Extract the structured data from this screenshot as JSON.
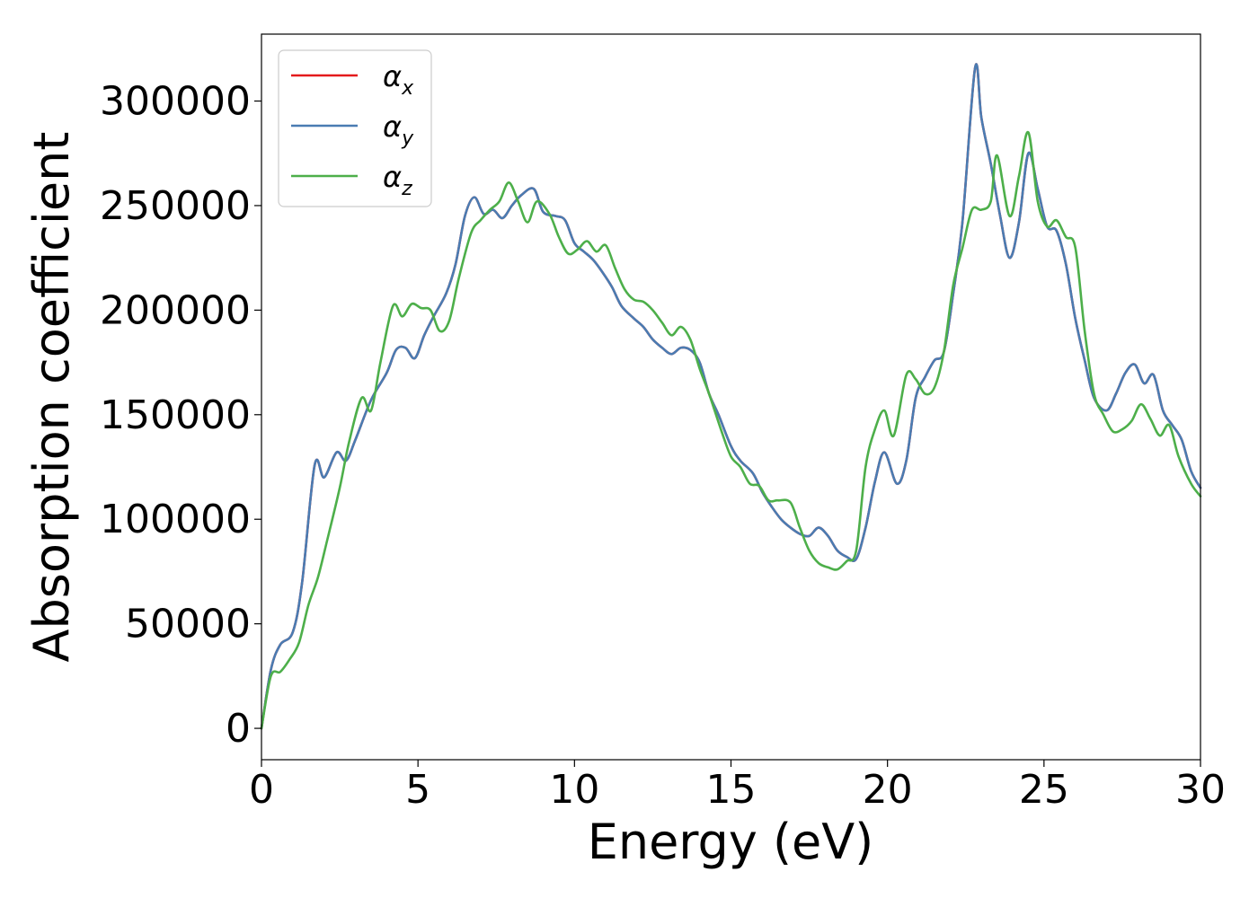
{
  "chart_data": {
    "type": "line",
    "title": "",
    "xlabel": "Energy (eV)",
    "ylabel": "Absorption coefficient",
    "xlim": [
      0,
      30
    ],
    "ylim": [
      -15000,
      332000
    ],
    "xticks": [
      0,
      5,
      10,
      15,
      20,
      25,
      30
    ],
    "yticks": [
      0,
      50000,
      100000,
      150000,
      200000,
      250000,
      300000
    ],
    "grid": false,
    "legend": "top-left",
    "series": [
      {
        "name": "α",
        "subscript": "x",
        "color": "#e41a1c",
        "x": [
          0,
          0.3,
          0.6,
          1.0,
          1.3,
          1.7,
          2.0,
          2.4,
          2.7,
          3.0,
          3.5,
          4.0,
          4.3,
          4.6,
          4.9,
          5.2,
          5.5,
          5.9,
          6.2,
          6.5,
          6.8,
          7.1,
          7.4,
          7.7,
          8.0,
          8.3,
          8.7,
          9.0,
          9.4,
          9.7,
          10.0,
          10.3,
          10.6,
          10.9,
          11.2,
          11.5,
          11.9,
          12.2,
          12.5,
          12.8,
          13.1,
          13.4,
          13.7,
          14.0,
          14.3,
          14.6,
          15.0,
          15.3,
          15.7,
          16.0,
          16.3,
          16.6,
          16.9,
          17.2,
          17.5,
          17.8,
          18.1,
          18.4,
          18.7,
          19.0,
          19.3,
          19.6,
          19.9,
          20.3,
          20.6,
          20.9,
          21.2,
          21.5,
          21.8,
          22.1,
          22.4,
          22.8,
          23.0,
          23.3,
          23.6,
          23.9,
          24.2,
          24.5,
          24.8,
          25.1,
          25.4,
          25.7,
          26.0,
          26.3,
          26.6,
          27.0,
          27.3,
          27.6,
          27.9,
          28.2,
          28.5,
          28.8,
          29.1,
          29.4,
          29.7,
          30.0
        ],
        "y": [
          0,
          28000,
          40000,
          46000,
          70000,
          126000,
          120000,
          132000,
          128000,
          138000,
          157000,
          170000,
          181000,
          182000,
          177000,
          188000,
          197000,
          208000,
          222000,
          245000,
          254000,
          246000,
          248000,
          244000,
          250000,
          255000,
          258000,
          247000,
          245000,
          243000,
          232000,
          228000,
          224000,
          218000,
          211000,
          202000,
          196000,
          192000,
          186000,
          182000,
          179000,
          182000,
          181000,
          175000,
          160000,
          150000,
          135000,
          128000,
          122000,
          113000,
          106000,
          100000,
          96000,
          93000,
          92000,
          96000,
          92000,
          85000,
          82000,
          81000,
          96000,
          118000,
          132000,
          117000,
          128000,
          158000,
          168000,
          176000,
          180000,
          208000,
          243000,
          316000,
          292000,
          270000,
          245000,
          225000,
          242000,
          275000,
          258000,
          240000,
          238000,
          222000,
          196000,
          176000,
          158000,
          152000,
          160000,
          170000,
          174000,
          165000,
          169000,
          152000,
          145000,
          138000,
          123000,
          115000
        ]
      },
      {
        "name": "α",
        "subscript": "y",
        "color": "#4a7cb2",
        "x": [
          0,
          0.3,
          0.6,
          1.0,
          1.3,
          1.7,
          2.0,
          2.4,
          2.7,
          3.0,
          3.5,
          4.0,
          4.3,
          4.6,
          4.9,
          5.2,
          5.5,
          5.9,
          6.2,
          6.5,
          6.8,
          7.1,
          7.4,
          7.7,
          8.0,
          8.3,
          8.7,
          9.0,
          9.4,
          9.7,
          10.0,
          10.3,
          10.6,
          10.9,
          11.2,
          11.5,
          11.9,
          12.2,
          12.5,
          12.8,
          13.1,
          13.4,
          13.7,
          14.0,
          14.3,
          14.6,
          15.0,
          15.3,
          15.7,
          16.0,
          16.3,
          16.6,
          16.9,
          17.2,
          17.5,
          17.8,
          18.1,
          18.4,
          18.7,
          19.0,
          19.3,
          19.6,
          19.9,
          20.3,
          20.6,
          20.9,
          21.2,
          21.5,
          21.8,
          22.1,
          22.4,
          22.8,
          23.0,
          23.3,
          23.6,
          23.9,
          24.2,
          24.5,
          24.8,
          25.1,
          25.4,
          25.7,
          26.0,
          26.3,
          26.6,
          27.0,
          27.3,
          27.6,
          27.9,
          28.2,
          28.5,
          28.8,
          29.1,
          29.4,
          29.7,
          30.0
        ],
        "y": [
          0,
          28000,
          40000,
          46000,
          70000,
          126000,
          120000,
          132000,
          128000,
          138000,
          157000,
          170000,
          181000,
          182000,
          177000,
          188000,
          197000,
          208000,
          222000,
          245000,
          254000,
          246000,
          248000,
          244000,
          250000,
          255000,
          258000,
          247000,
          245000,
          243000,
          232000,
          228000,
          224000,
          218000,
          211000,
          202000,
          196000,
          192000,
          186000,
          182000,
          179000,
          182000,
          181000,
          175000,
          160000,
          150000,
          135000,
          128000,
          122000,
          113000,
          106000,
          100000,
          96000,
          93000,
          92000,
          96000,
          92000,
          85000,
          82000,
          81000,
          96000,
          118000,
          132000,
          117000,
          128000,
          158000,
          168000,
          176000,
          180000,
          208000,
          243000,
          316000,
          292000,
          270000,
          245000,
          225000,
          242000,
          275000,
          258000,
          240000,
          238000,
          222000,
          196000,
          176000,
          158000,
          152000,
          160000,
          170000,
          174000,
          165000,
          169000,
          152000,
          145000,
          138000,
          123000,
          115000
        ]
      },
      {
        "name": "α",
        "subscript": "z",
        "color": "#4daf4a",
        "x": [
          0,
          0.3,
          0.6,
          0.9,
          1.2,
          1.5,
          1.8,
          2.1,
          2.5,
          2.8,
          3.2,
          3.5,
          3.8,
          4.2,
          4.5,
          4.8,
          5.1,
          5.4,
          5.7,
          6.0,
          6.3,
          6.7,
          7.0,
          7.3,
          7.6,
          7.9,
          8.2,
          8.5,
          8.8,
          9.2,
          9.5,
          9.8,
          10.1,
          10.4,
          10.7,
          11.0,
          11.3,
          11.6,
          11.9,
          12.2,
          12.5,
          12.8,
          13.1,
          13.4,
          13.7,
          14.0,
          14.3,
          14.7,
          15.0,
          15.3,
          15.6,
          15.9,
          16.2,
          16.5,
          16.9,
          17.2,
          17.5,
          17.8,
          18.1,
          18.4,
          18.7,
          19.0,
          19.3,
          19.6,
          19.9,
          20.2,
          20.6,
          20.9,
          21.2,
          21.5,
          21.8,
          22.1,
          22.4,
          22.7,
          23.0,
          23.3,
          23.5,
          23.9,
          24.2,
          24.5,
          24.8,
          25.1,
          25.4,
          25.7,
          26.0,
          26.3,
          26.6,
          26.9,
          27.2,
          27.5,
          27.8,
          28.1,
          28.4,
          28.7,
          29.0,
          29.3,
          29.7,
          30.0
        ],
        "y": [
          0,
          25000,
          27000,
          33000,
          41000,
          59000,
          72000,
          90000,
          115000,
          137000,
          158000,
          152000,
          175000,
          202000,
          197000,
          203000,
          201000,
          200000,
          190000,
          195000,
          215000,
          237000,
          243000,
          248000,
          252000,
          261000,
          252000,
          242000,
          252000,
          246000,
          235000,
          227000,
          229000,
          233000,
          228000,
          231000,
          220000,
          210000,
          205000,
          204000,
          200000,
          194000,
          188000,
          192000,
          186000,
          172000,
          160000,
          142000,
          130000,
          125000,
          117000,
          116000,
          109000,
          109000,
          108000,
          96000,
          85000,
          79000,
          77000,
          76000,
          80000,
          85000,
          125000,
          143000,
          152000,
          140000,
          169000,
          167000,
          160000,
          163000,
          180000,
          212000,
          230000,
          248000,
          248000,
          252000,
          274000,
          245000,
          264000,
          285000,
          252000,
          240000,
          243000,
          235000,
          230000,
          190000,
          160000,
          150000,
          142000,
          143000,
          147000,
          155000,
          148000,
          140000,
          145000,
          130000,
          117000,
          111000
        ]
      }
    ]
  }
}
